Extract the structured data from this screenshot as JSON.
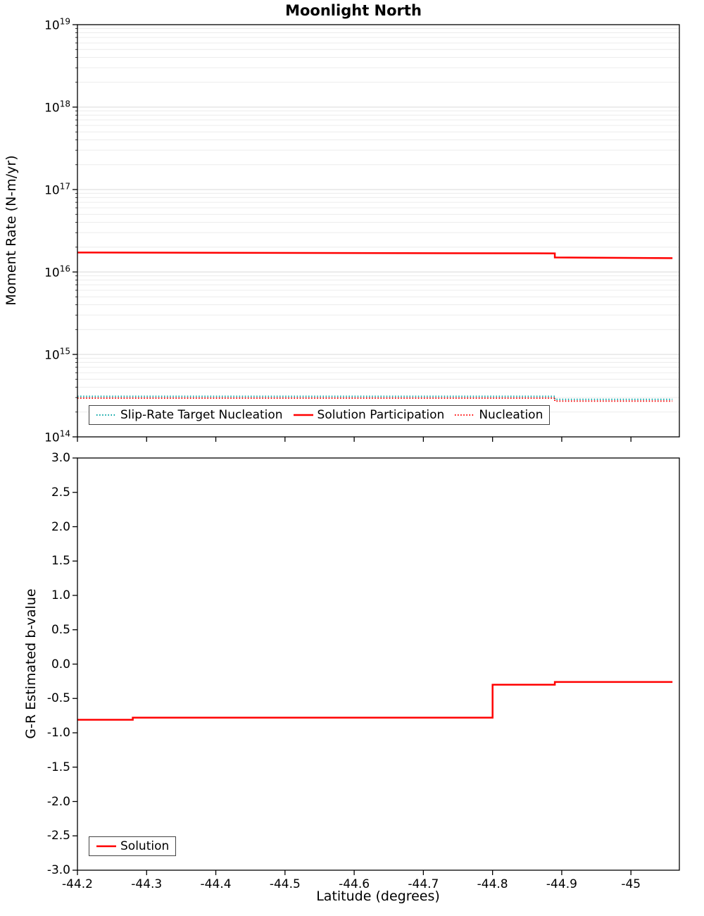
{
  "title": "Moonlight North",
  "xlabel": "Latitude (degrees)",
  "xticks": [
    {
      "label": "-44.2",
      "value": -44.2
    },
    {
      "label": "-44.3",
      "value": -44.3
    },
    {
      "label": "-44.4",
      "value": -44.4
    },
    {
      "label": "-44.5",
      "value": -44.5
    },
    {
      "label": "-44.6",
      "value": -44.6
    },
    {
      "label": "-44.7",
      "value": -44.7
    },
    {
      "label": "-44.8",
      "value": -44.8
    },
    {
      "label": "-44.9",
      "value": -44.9
    },
    {
      "label": "-45",
      "value": -45.0
    }
  ],
  "chart_data": [
    {
      "type": "line",
      "title": "Moonlight North",
      "ylabel": "Moment Rate (N-m/yr)",
      "yscale": "log",
      "ylim": [
        100000000000000.0,
        1e+19
      ],
      "xlim": [
        -44.2,
        -45.07
      ],
      "x_axis_reversed_negative": true,
      "grid": true,
      "legend_position": "inside-bottom-left",
      "yticks": [
        {
          "label": "10^19",
          "value": 1e+19
        },
        {
          "label": "10^18",
          "value": 1e+18
        },
        {
          "label": "10^17",
          "value": 1e+17
        },
        {
          "label": "10^16",
          "value": 1e+16
        },
        {
          "label": "10^15",
          "value": 1000000000000000.0
        },
        {
          "label": "10^14",
          "value": 100000000000000.0
        }
      ],
      "series": [
        {
          "name": "Slip-Rate Target Nucleation",
          "color": "#00A3A3",
          "dash": "dotted",
          "width": 2,
          "x": [
            -44.2,
            -44.89,
            -44.89,
            -45.06
          ],
          "y": [
            310000000000000.0,
            310000000000000.0,
            285000000000000.0,
            285000000000000.0
          ]
        },
        {
          "name": "Solution Participation",
          "color": "#FF0000",
          "dash": "solid",
          "width": 2.5,
          "x": [
            -44.2,
            -44.89,
            -44.89,
            -45.06
          ],
          "y": [
            1.72e+16,
            1.68e+16,
            1.5e+16,
            1.47e+16
          ]
        },
        {
          "name": "Nucleation",
          "color": "#FF0000",
          "dash": "dotted",
          "width": 2,
          "x": [
            -44.2,
            -44.89,
            -44.89,
            -45.06
          ],
          "y": [
            295000000000000.0,
            295000000000000.0,
            272000000000000.0,
            272000000000000.0
          ]
        }
      ]
    },
    {
      "type": "line",
      "ylabel": "G-R Estimated b-value",
      "yscale": "linear",
      "ylim": [
        -3,
        3
      ],
      "xlim": [
        -44.2,
        -45.07
      ],
      "grid": false,
      "legend_position": "inside-bottom-left",
      "yticks": [
        {
          "label": "3.0",
          "value": 3.0
        },
        {
          "label": "2.5",
          "value": 2.5
        },
        {
          "label": "2.0",
          "value": 2.0
        },
        {
          "label": "1.5",
          "value": 1.5
        },
        {
          "label": "1.0",
          "value": 1.0
        },
        {
          "label": "0.5",
          "value": 0.5
        },
        {
          "label": "0.0",
          "value": 0.0
        },
        {
          "label": "-0.5",
          "value": -0.5
        },
        {
          "label": "-1.0",
          "value": -1.0
        },
        {
          "label": "-1.5",
          "value": -1.5
        },
        {
          "label": "-2.0",
          "value": -2.0
        },
        {
          "label": "-2.5",
          "value": -2.5
        },
        {
          "label": "-3.0",
          "value": -3.0
        }
      ],
      "series": [
        {
          "name": "Solution",
          "color": "#FF0000",
          "dash": "solid",
          "width": 2.5,
          "x": [
            -44.2,
            -44.28,
            -44.28,
            -44.8,
            -44.8,
            -44.89,
            -44.89,
            -45.06
          ],
          "y": [
            -0.81,
            -0.81,
            -0.78,
            -0.78,
            -0.3,
            -0.3,
            -0.26,
            -0.26
          ]
        }
      ]
    }
  ]
}
